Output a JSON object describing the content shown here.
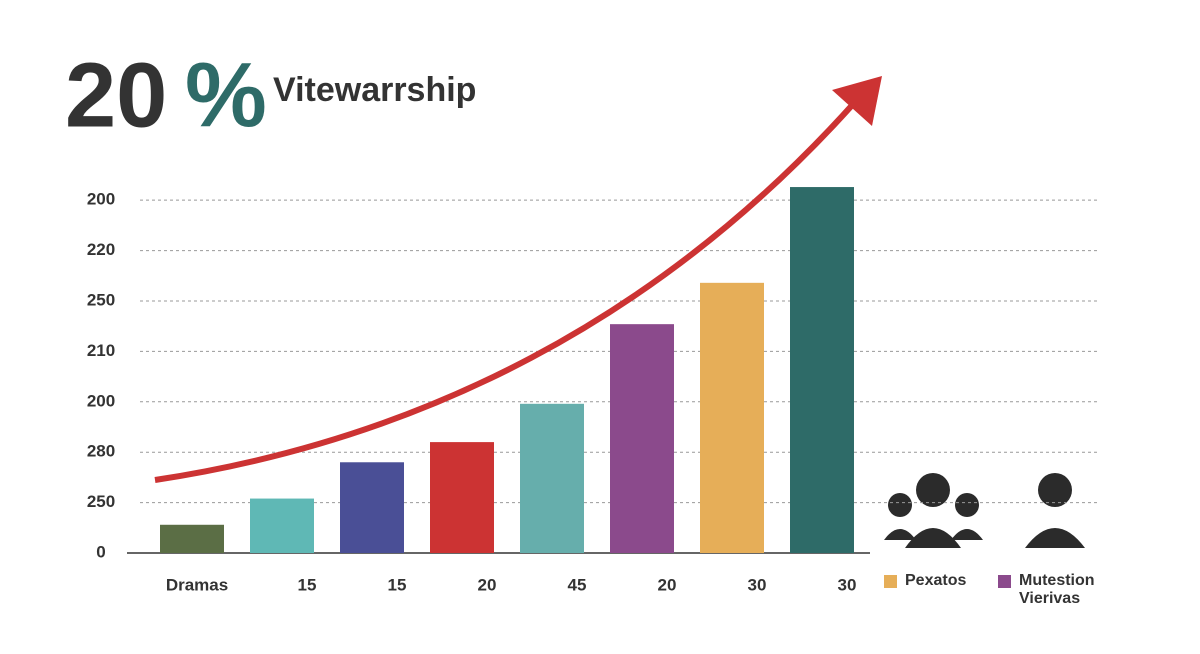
{
  "chart_data": {
    "type": "bar",
    "headline_number": "20",
    "headline_symbol": "%",
    "title": "Vitewarrship",
    "categories": [
      "Dramas",
      "15",
      "15",
      "20",
      "45",
      "20",
      "30",
      "30"
    ],
    "values": [
      28,
      54,
      90,
      110,
      148,
      227,
      268,
      363
    ],
    "colors": [
      "#5b6e45",
      "#5fb8b5",
      "#4a4f96",
      "#cc3333",
      "#66aeac",
      "#8b4a8c",
      "#e6ae58",
      "#2e6b68"
    ],
    "ylim": [
      0,
      370
    ],
    "yticks": [
      0,
      {
        "value": 50,
        "label": "250"
      },
      {
        "value": 100,
        "label": "280"
      },
      {
        "value": 150,
        "label": "200"
      },
      {
        "value": 200,
        "label": "210"
      },
      {
        "value": 250,
        "label": "250"
      },
      {
        "value": 300,
        "label": "220"
      },
      {
        "value": 350,
        "label": "200"
      }
    ],
    "grid": true,
    "legend": [
      {
        "name": "Pexatos",
        "color": "#e6ae58"
      },
      {
        "name": "Mutestion Vierivas",
        "color": "#8b4a8c"
      }
    ]
  }
}
